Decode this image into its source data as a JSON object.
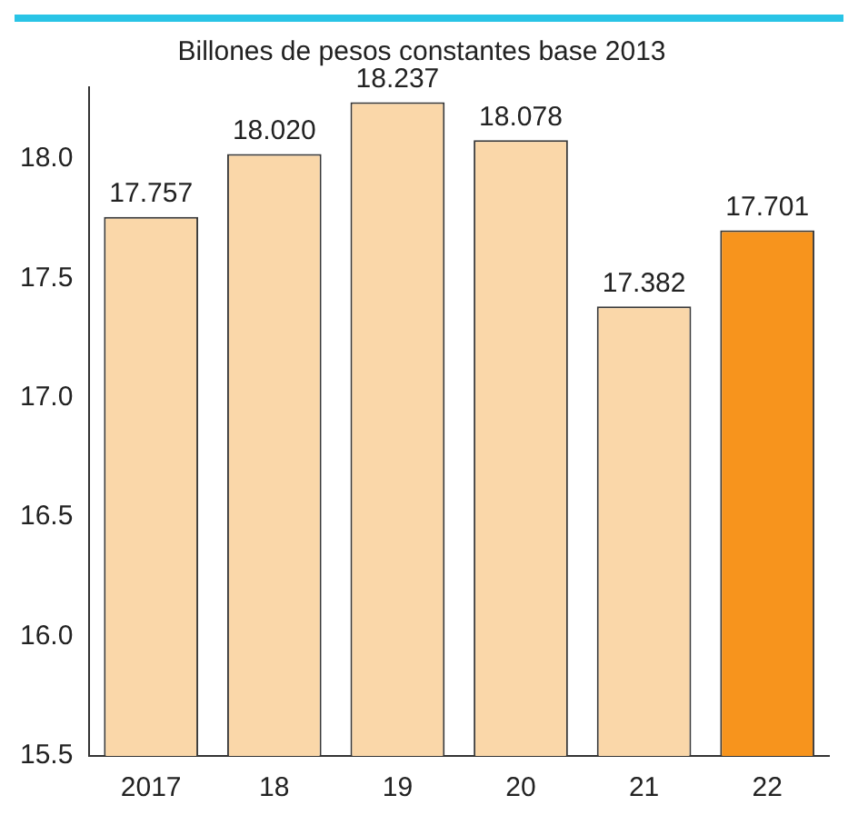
{
  "chart_data": {
    "type": "bar",
    "title": "Billones de pesos constantes base 2013",
    "categories": [
      "2017",
      "18",
      "19",
      "20",
      "21",
      "22"
    ],
    "values": [
      17.757,
      18.02,
      18.237,
      18.078,
      17.382,
      17.701
    ],
    "colors": [
      "#fad7a9",
      "#fad7a9",
      "#fad7a9",
      "#fad7a9",
      "#fad7a9",
      "#f7941d"
    ],
    "ylim": [
      15.5,
      18.3
    ],
    "yticks": [
      15.5,
      {
        "value": 16,
        "label": "16.0"
      },
      16.5,
      {
        "value": 17,
        "label": "17.0"
      },
      17.5,
      {
        "value": 18,
        "label": "18.0"
      }
    ],
    "value_labels": [
      "17.757",
      "18.020",
      "18.237",
      "18.078",
      "17.382",
      "17.701"
    ],
    "grid": false,
    "legend": false
  }
}
